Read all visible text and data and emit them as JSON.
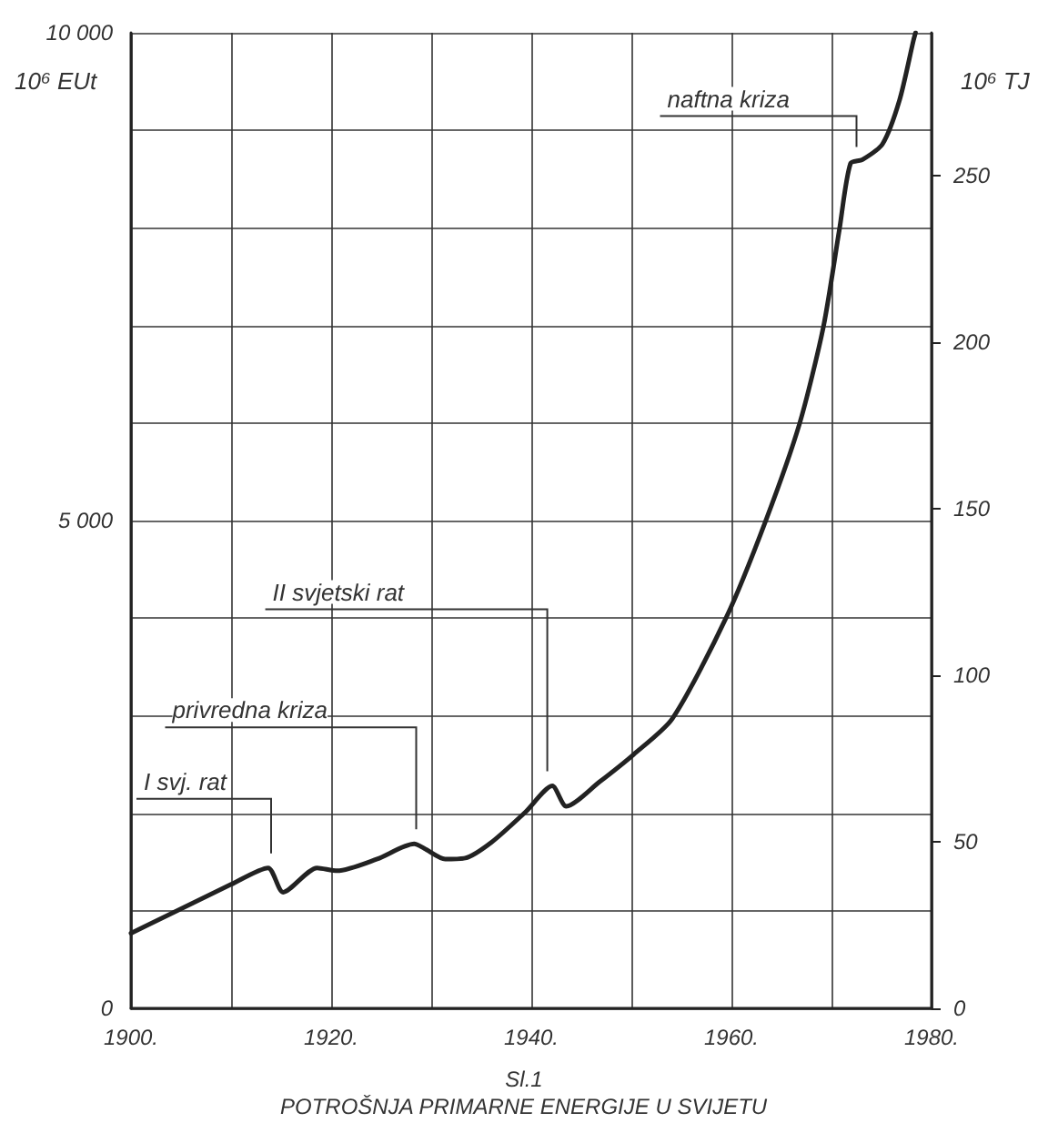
{
  "chart_data": {
    "type": "line",
    "title": "POTROŠNJA PRIMARNE ENERGIJE U SVIJETU",
    "subtitle": "Sl.1",
    "ylabel": "10⁶ EUt",
    "y2label": "10⁶ TJ",
    "x": [
      1900,
      1910,
      1913.7,
      1915.2,
      1918.6,
      1920.6,
      1924.6,
      1928.3,
      1929.3,
      1931.4,
      1933.4,
      1936,
      1939.4,
      1942.1,
      1943.5,
      1946.8,
      1950.2,
      1954.1,
      1959.5,
      1963.4,
      1966.8,
      1969.2,
      1970.8,
      1971.9,
      1973.1,
      1975.1,
      1976.8,
      1978.2,
      1978.4
    ],
    "series": [
      {
        "color": "#222222",
        "values": [
          770,
          1270,
          1440,
          1190,
          1440,
          1410,
          1530,
          1685,
          1640,
          1530,
          1540,
          1700,
          2010,
          2280,
          2070,
          2320,
          2600,
          2970,
          4010,
          4990,
          5990,
          6990,
          7990,
          8660,
          8700,
          8860,
          9310,
          9925,
          10000
        ]
      }
    ],
    "xlim": [
      1900,
      1980
    ],
    "xticks": [
      {
        "value": 1900,
        "label": "1900."
      },
      {
        "value": 1910,
        "label": null
      },
      {
        "value": 1920,
        "label": "1920."
      },
      {
        "value": 1930,
        "label": null
      },
      {
        "value": 1940,
        "label": "1940."
      },
      {
        "value": 1950,
        "label": null
      },
      {
        "value": 1960,
        "label": "1960."
      },
      {
        "value": 1970,
        "label": null
      },
      {
        "value": 1980,
        "label": "1980."
      }
    ],
    "ylim": [
      0,
      10000
    ],
    "yticks": [
      0,
      {
        "value": 1000,
        "label": null
      },
      {
        "value": 2000,
        "label": null
      },
      {
        "value": 3000,
        "label": null
      },
      {
        "value": 4000,
        "label": null
      },
      {
        "value": 5000,
        "label": "5 000"
      },
      {
        "value": 6000,
        "label": null
      },
      {
        "value": 7000,
        "label": null
      },
      {
        "value": 8000,
        "label": null
      },
      {
        "value": 9000,
        "label": null
      },
      {
        "value": 10000,
        "label": "10 000"
      }
    ],
    "y2lim": [
      0,
      293
    ],
    "y2ticks": [
      0,
      50,
      100,
      150,
      200,
      250
    ],
    "annotations": [
      {
        "text": "I svj. rat",
        "x": 1914,
        "y": 1440
      },
      {
        "text": "privredna kriza",
        "x": 1928.5,
        "y": 1685
      },
      {
        "text": "II svjetski rat",
        "x": 1941.6,
        "y": 2280
      },
      {
        "text": "naftna kriza",
        "x": 1972.5,
        "y": 8680
      }
    ],
    "grid": true,
    "marker": "none",
    "line_style": "solid"
  }
}
